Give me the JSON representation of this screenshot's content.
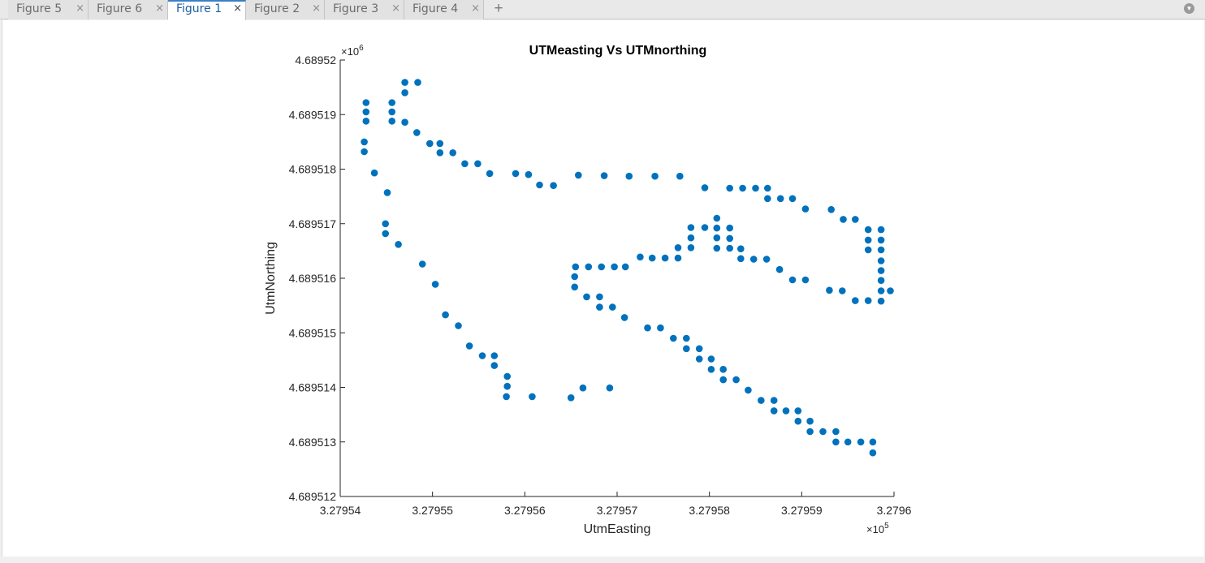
{
  "tabs": [
    {
      "label": "Figure 5",
      "close": "×",
      "active": false
    },
    {
      "label": "Figure 6",
      "close": "×",
      "active": false
    },
    {
      "label": "Figure 1",
      "close": "×",
      "active": true
    },
    {
      "label": "Figure 2",
      "close": "×",
      "active": false
    },
    {
      "label": "Figure 3",
      "close": "×",
      "active": false
    },
    {
      "label": "Figure 4",
      "close": "×",
      "active": false
    }
  ],
  "new_tab_label": "+",
  "menu_icon": "chevron-down-icon",
  "chart_data": {
    "type": "scatter",
    "title": "UTMeasting Vs UTMnorthing",
    "xlabel": "UtmEasting",
    "ylabel": "UtmNorthing",
    "xlim": [
      327954,
      327960
    ],
    "ylim": [
      4689512,
      4689520
    ],
    "x_ticks": [
      327954,
      327955,
      327956,
      327957,
      327958,
      327959,
      327960
    ],
    "x_tick_labels": [
      "3.27954",
      "3.27955",
      "3.27956",
      "3.27957",
      "3.27958",
      "3.27959",
      "3.2796"
    ],
    "y_ticks": [
      4689512,
      4689513,
      4689514,
      4689515,
      4689516,
      4689517,
      4689518,
      4689519,
      4689520
    ],
    "y_tick_labels": [
      "4.689512",
      "4.689513",
      "4.689514",
      "4.689515",
      "4.689516",
      "4.689517",
      "4.689518",
      "4.689519",
      "4.68952"
    ],
    "x_exponent_label": "×10",
    "x_exponent": "5",
    "y_exponent_label": "×10",
    "y_exponent": "6",
    "marker_color": "#0072bd",
    "grid": false,
    "legend": false,
    "points": [
      [
        327954.28,
        4689519.22
      ],
      [
        327954.28,
        4689519.05
      ],
      [
        327954.28,
        4689518.88
      ],
      [
        327954.26,
        4689518.5
      ],
      [
        327954.26,
        4689518.32
      ],
      [
        327954.37,
        4689517.93
      ],
      [
        327954.51,
        4689517.57
      ],
      [
        327954.49,
        4689517.0
      ],
      [
        327954.49,
        4689516.82
      ],
      [
        327954.63,
        4689516.62
      ],
      [
        327954.89,
        4689516.26
      ],
      [
        327955.03,
        4689515.89
      ],
      [
        327955.14,
        4689515.33
      ],
      [
        327955.28,
        4689515.13
      ],
      [
        327955.4,
        4689514.76
      ],
      [
        327955.54,
        4689514.58
      ],
      [
        327955.67,
        4689514.58
      ],
      [
        327955.67,
        4689514.4
      ],
      [
        327955.81,
        4689514.2
      ],
      [
        327955.81,
        4689514.02
      ],
      [
        327955.8,
        4689513.83
      ],
      [
        327956.08,
        4689513.83
      ],
      [
        327956.5,
        4689513.81
      ],
      [
        327956.63,
        4689513.99
      ],
      [
        327956.92,
        4689513.99
      ],
      [
        327954.56,
        4689519.22
      ],
      [
        327954.56,
        4689519.05
      ],
      [
        327954.56,
        4689518.88
      ],
      [
        327954.7,
        4689518.86
      ],
      [
        327954.7,
        4689519.4
      ],
      [
        327954.7,
        4689519.59
      ],
      [
        327954.84,
        4689519.59
      ],
      [
        327954.83,
        4689518.67
      ],
      [
        327954.97,
        4689518.47
      ],
      [
        327955.08,
        4689518.47
      ],
      [
        327955.08,
        4689518.3
      ],
      [
        327955.22,
        4689518.3
      ],
      [
        327955.35,
        4689518.1
      ],
      [
        327955.49,
        4689518.1
      ],
      [
        327955.62,
        4689517.92
      ],
      [
        327955.9,
        4689517.92
      ],
      [
        327956.04,
        4689517.9
      ],
      [
        327956.16,
        4689517.71
      ],
      [
        327956.31,
        4689517.7
      ],
      [
        327956.58,
        4689517.89
      ],
      [
        327956.86,
        4689517.88
      ],
      [
        327957.13,
        4689517.87
      ],
      [
        327957.41,
        4689517.87
      ],
      [
        327957.68,
        4689517.87
      ],
      [
        327957.95,
        4689517.66
      ],
      [
        327958.22,
        4689517.65
      ],
      [
        327958.36,
        4689517.65
      ],
      [
        327958.5,
        4689517.65
      ],
      [
        327958.63,
        4689517.65
      ],
      [
        327958.63,
        4689517.46
      ],
      [
        327958.77,
        4689517.46
      ],
      [
        327958.9,
        4689517.46
      ],
      [
        327959.04,
        4689517.27
      ],
      [
        327959.32,
        4689517.26
      ],
      [
        327959.45,
        4689517.08
      ],
      [
        327959.58,
        4689517.08
      ],
      [
        327959.72,
        4689516.89
      ],
      [
        327959.72,
        4689516.7
      ],
      [
        327959.72,
        4689516.52
      ],
      [
        327959.86,
        4689516.89
      ],
      [
        327959.86,
        4689516.7
      ],
      [
        327959.86,
        4689516.52
      ],
      [
        327959.86,
        4689516.32
      ],
      [
        327959.86,
        4689516.14
      ],
      [
        327959.86,
        4689515.96
      ],
      [
        327959.86,
        4689515.77
      ],
      [
        327959.86,
        4689515.58
      ],
      [
        327959.96,
        4689515.77
      ],
      [
        327959.72,
        4689515.59
      ],
      [
        327959.58,
        4689515.59
      ],
      [
        327959.44,
        4689515.77
      ],
      [
        327959.3,
        4689515.78
      ],
      [
        327959.04,
        4689515.97
      ],
      [
        327958.9,
        4689515.97
      ],
      [
        327958.76,
        4689516.16
      ],
      [
        327958.62,
        4689516.35
      ],
      [
        327958.48,
        4689516.35
      ],
      [
        327958.34,
        4689516.36
      ],
      [
        327958.34,
        4689516.54
      ],
      [
        327958.22,
        4689516.55
      ],
      [
        327958.22,
        4689516.73
      ],
      [
        327958.22,
        4689516.92
      ],
      [
        327958.08,
        4689516.55
      ],
      [
        327958.08,
        4689516.74
      ],
      [
        327958.08,
        4689516.92
      ],
      [
        327958.08,
        4689517.1
      ],
      [
        327957.95,
        4689516.93
      ],
      [
        327957.8,
        4689516.93
      ],
      [
        327957.8,
        4689516.74
      ],
      [
        327957.8,
        4689516.56
      ],
      [
        327957.66,
        4689516.56
      ],
      [
        327957.66,
        4689516.37
      ],
      [
        327957.52,
        4689516.37
      ],
      [
        327957.38,
        4689516.37
      ],
      [
        327957.25,
        4689516.39
      ],
      [
        327957.09,
        4689516.21
      ],
      [
        327956.97,
        4689516.21
      ],
      [
        327956.83,
        4689516.21
      ],
      [
        327956.69,
        4689516.21
      ],
      [
        327956.55,
        4689516.21
      ],
      [
        327956.54,
        4689516.03
      ],
      [
        327956.54,
        4689515.84
      ],
      [
        327956.67,
        4689515.66
      ],
      [
        327956.81,
        4689515.66
      ],
      [
        327956.81,
        4689515.47
      ],
      [
        327956.95,
        4689515.47
      ],
      [
        327957.08,
        4689515.28
      ],
      [
        327957.33,
        4689515.09
      ],
      [
        327957.47,
        4689515.09
      ],
      [
        327957.61,
        4689514.9
      ],
      [
        327957.75,
        4689514.9
      ],
      [
        327957.75,
        4689514.71
      ],
      [
        327957.89,
        4689514.71
      ],
      [
        327957.89,
        4689514.52
      ],
      [
        327958.02,
        4689514.52
      ],
      [
        327958.02,
        4689514.33
      ],
      [
        327958.15,
        4689514.33
      ],
      [
        327958.15,
        4689514.14
      ],
      [
        327958.29,
        4689514.14
      ],
      [
        327958.42,
        4689513.95
      ],
      [
        327958.56,
        4689513.76
      ],
      [
        327958.7,
        4689513.76
      ],
      [
        327958.7,
        4689513.57
      ],
      [
        327958.83,
        4689513.57
      ],
      [
        327958.96,
        4689513.57
      ],
      [
        327958.96,
        4689513.38
      ],
      [
        327959.09,
        4689513.38
      ],
      [
        327959.09,
        4689513.19
      ],
      [
        327959.23,
        4689513.19
      ],
      [
        327959.37,
        4689513.19
      ],
      [
        327959.37,
        4689513.0
      ],
      [
        327959.5,
        4689513.0
      ],
      [
        327959.64,
        4689513.0
      ],
      [
        327959.77,
        4689513.0
      ],
      [
        327959.77,
        4689512.8
      ]
    ]
  }
}
